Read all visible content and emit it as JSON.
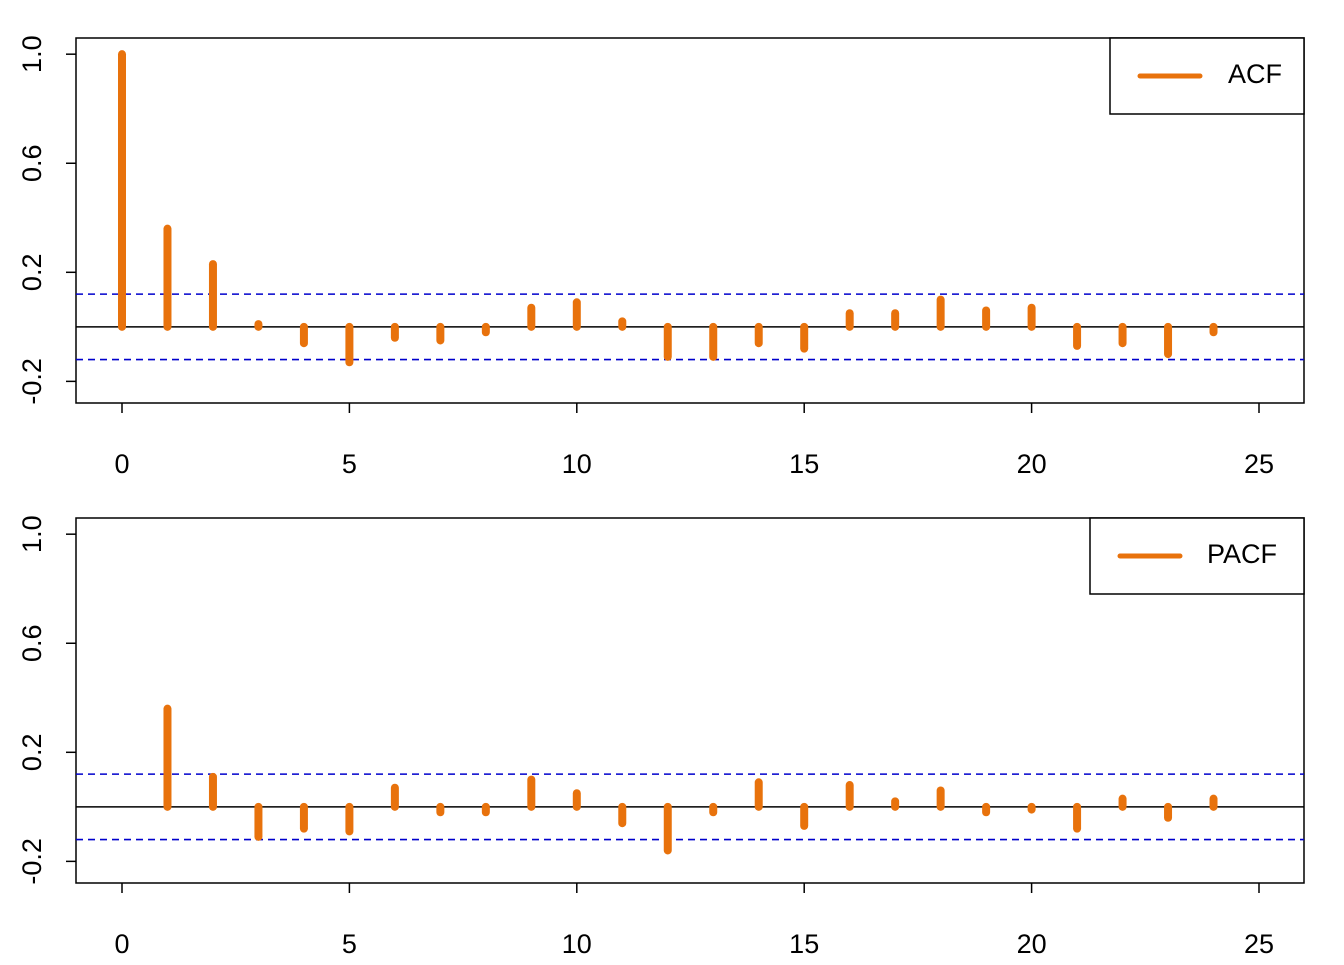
{
  "chart_data": [
    {
      "type": "bar",
      "lags": [
        0,
        1,
        2,
        3,
        4,
        5,
        6,
        7,
        8,
        9,
        10,
        11,
        12,
        13,
        14,
        15,
        16,
        17,
        18,
        19,
        20,
        21,
        22,
        23,
        24
      ],
      "series": [
        {
          "name": "ACF",
          "values": [
            1.0,
            0.36,
            0.23,
            0.01,
            -0.06,
            -0.13,
            -0.04,
            -0.05,
            -0.02,
            0.07,
            0.09,
            0.02,
            -0.11,
            -0.11,
            -0.06,
            -0.08,
            0.05,
            0.05,
            0.1,
            0.06,
            0.07,
            -0.07,
            -0.06,
            -0.1,
            -0.02
          ]
        }
      ],
      "confidence_band": [
        -0.12,
        0.12
      ],
      "xlim": [
        0,
        25
      ],
      "ylim": [
        -0.25,
        1.03
      ],
      "x_ticks": [
        "0",
        "5",
        "10",
        "15",
        "20",
        "25"
      ],
      "y_ticks": [
        "-0.2",
        "0.2",
        "0.6",
        "1.0"
      ],
      "x_tick_values": [
        0,
        5,
        10,
        15,
        20,
        25
      ],
      "y_tick_values": [
        -0.2,
        0.2,
        0.6,
        1.0
      ],
      "legend": {
        "label": "ACF",
        "position": "top-right"
      },
      "colors": {
        "bars": "#E8720C",
        "band": "#0000CC",
        "zero_line": "#000000"
      }
    },
    {
      "type": "bar",
      "lags": [
        1,
        2,
        3,
        4,
        5,
        6,
        7,
        8,
        9,
        10,
        11,
        12,
        13,
        14,
        15,
        16,
        17,
        18,
        19,
        20,
        21,
        22,
        23,
        24
      ],
      "series": [
        {
          "name": "PACF",
          "values": [
            0.36,
            0.11,
            -0.11,
            -0.08,
            -0.09,
            0.07,
            -0.02,
            -0.02,
            0.1,
            0.05,
            -0.06,
            -0.16,
            -0.02,
            0.09,
            -0.07,
            0.08,
            0.02,
            0.06,
            -0.02,
            -0.01,
            -0.08,
            0.03,
            -0.04,
            0.03
          ]
        }
      ],
      "confidence_band": [
        -0.12,
        0.12
      ],
      "xlim": [
        0,
        25
      ],
      "ylim": [
        -0.25,
        1.03
      ],
      "x_ticks": [
        "0",
        "5",
        "10",
        "15",
        "20",
        "25"
      ],
      "y_ticks": [
        "-0.2",
        "0.2",
        "0.6",
        "1.0"
      ],
      "x_tick_values": [
        0,
        5,
        10,
        15,
        20,
        25
      ],
      "y_tick_values": [
        -0.2,
        0.2,
        0.6,
        1.0
      ],
      "legend": {
        "label": "PACF",
        "position": "top-right"
      },
      "colors": {
        "bars": "#E8720C",
        "band": "#0000CC",
        "zero_line": "#000000"
      }
    }
  ]
}
